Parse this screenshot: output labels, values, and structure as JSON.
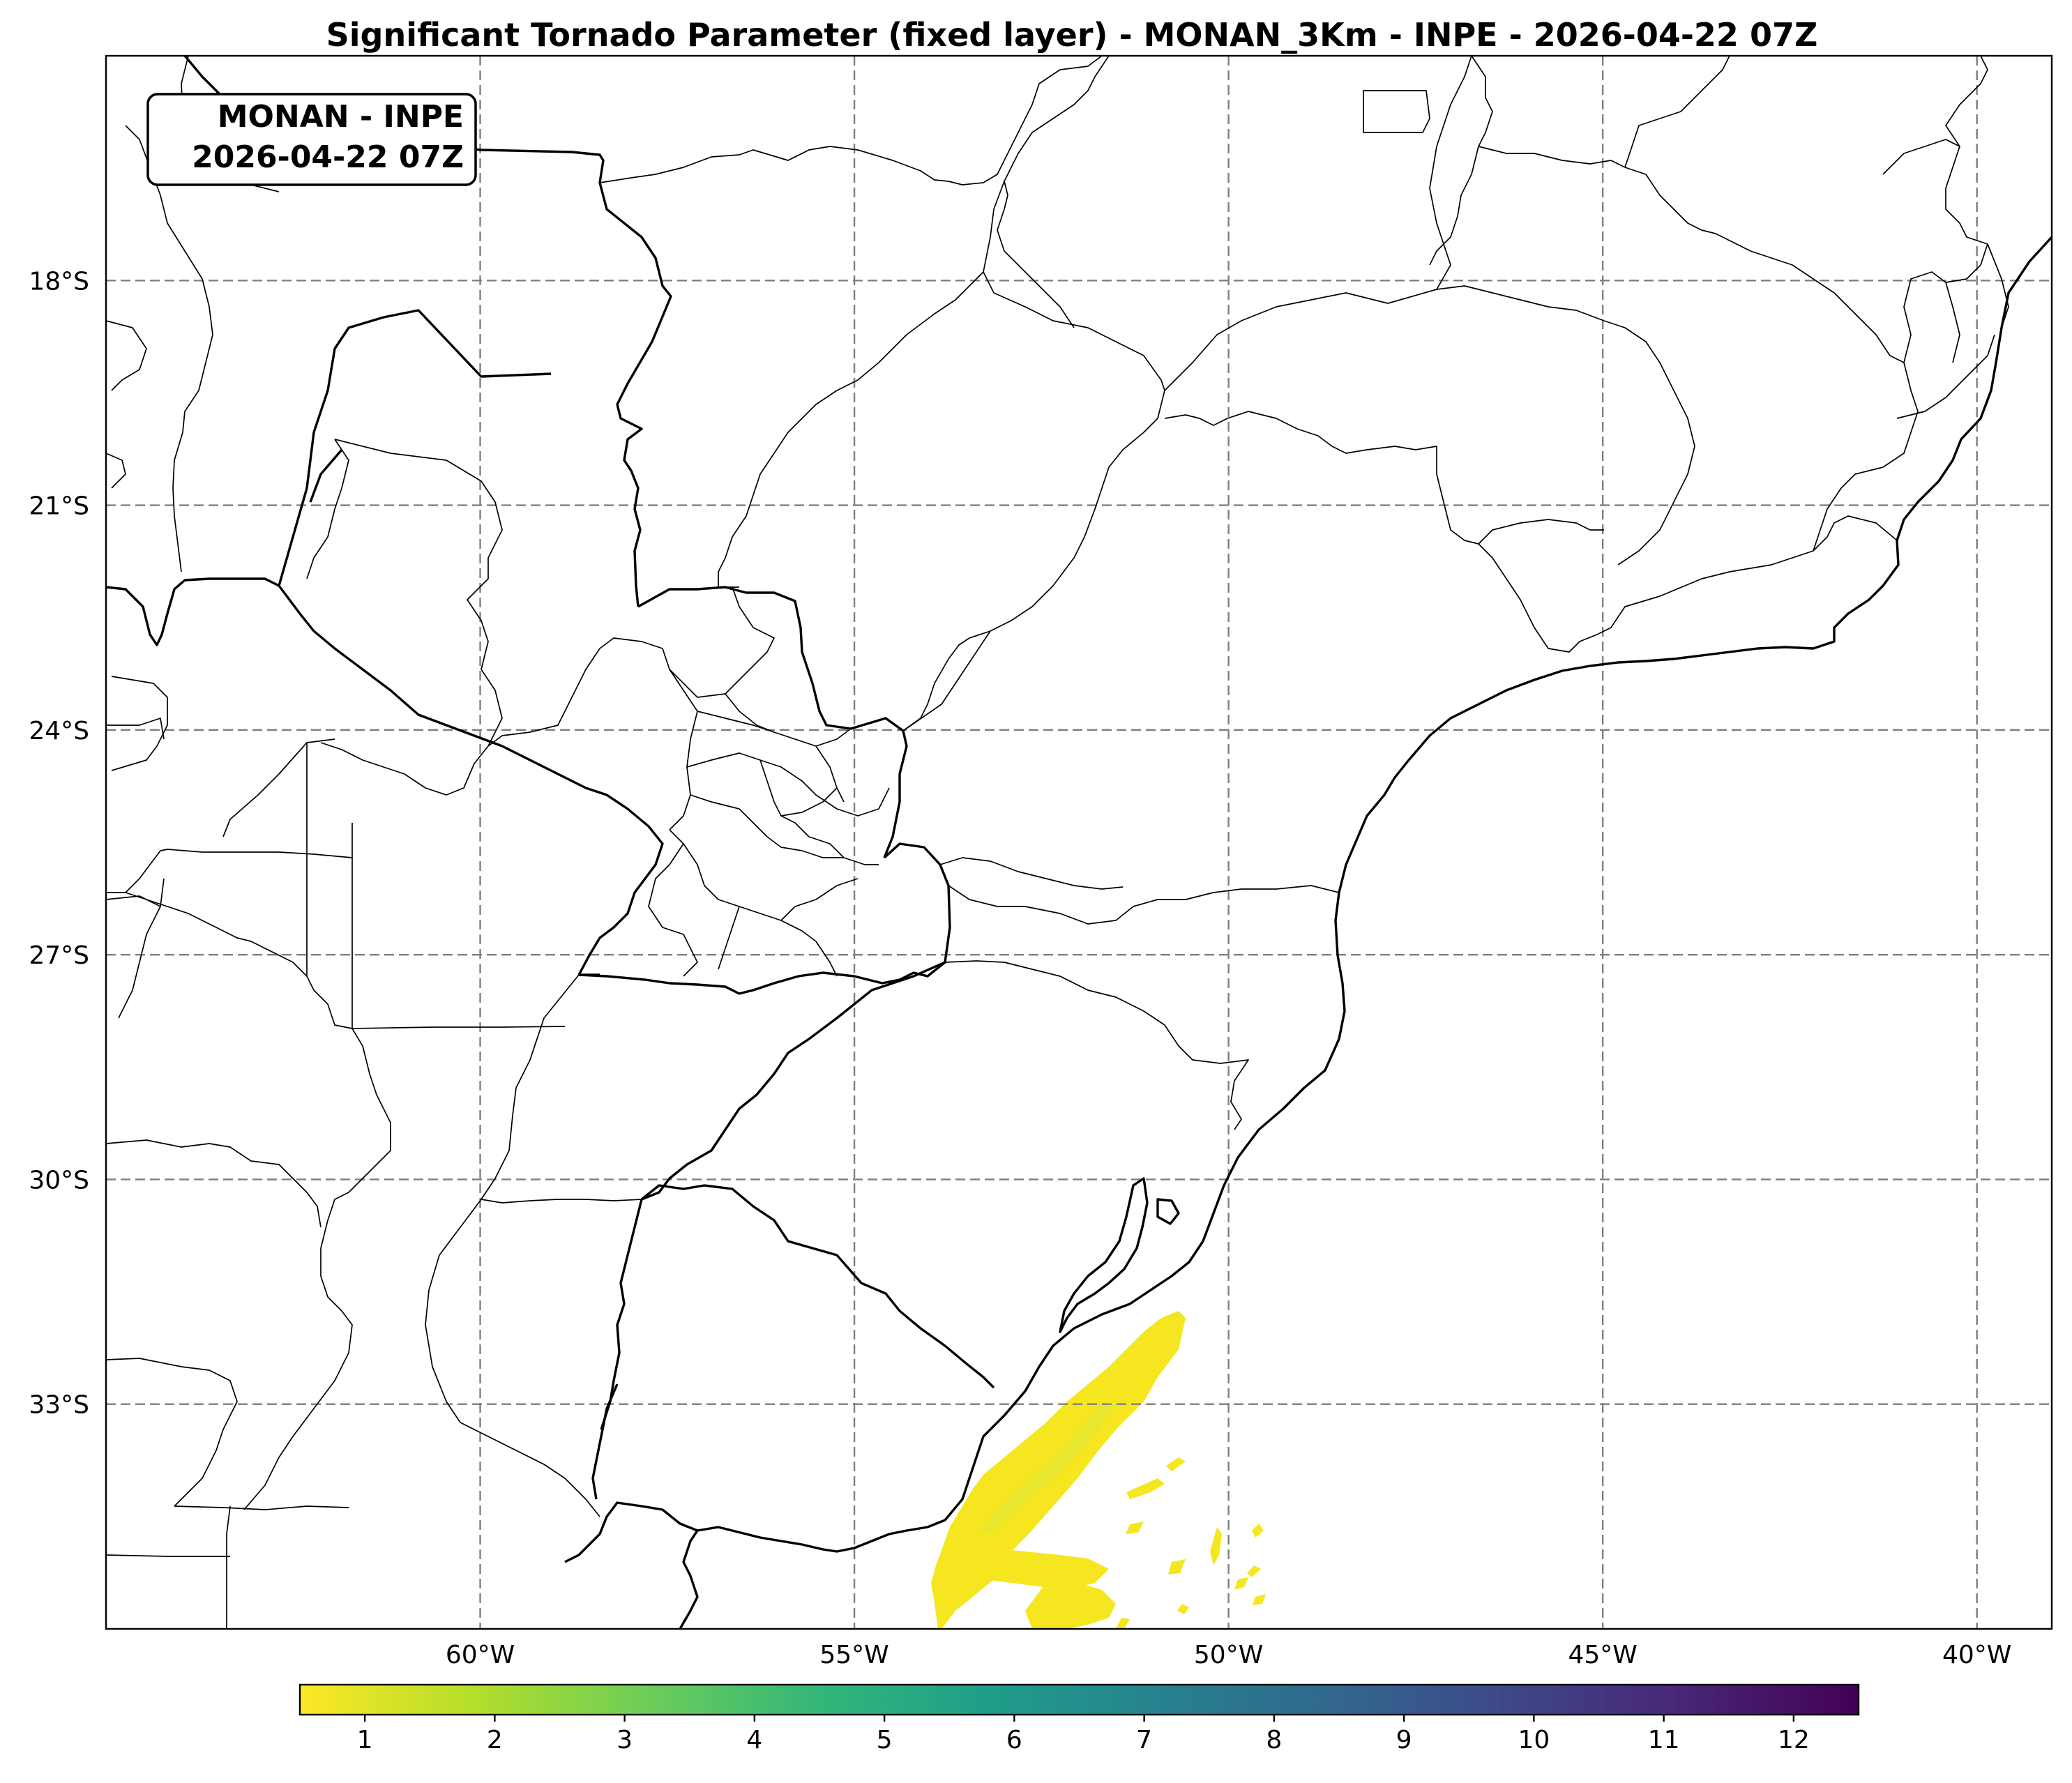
{
  "title": "Significant Tornado Parameter (fixed layer) - MONAN_3Km - INPE - 2026-04-22 07Z",
  "stamp": {
    "line1": "MONAN - INPE",
    "line2": "2026-04-22 07Z"
  },
  "map": {
    "lon_range": [
      -65,
      -39
    ],
    "lat_range": [
      -36,
      -15
    ],
    "gridlines": true,
    "lat_ticks": [
      {
        "value": -18,
        "label": "18°S"
      },
      {
        "value": -21,
        "label": "21°S"
      },
      {
        "value": -24,
        "label": "24°S"
      },
      {
        "value": -27,
        "label": "27°S"
      },
      {
        "value": -30,
        "label": "30°S"
      },
      {
        "value": -33,
        "label": "33°S"
      }
    ],
    "lon_ticks": [
      {
        "value": -60,
        "label": "60°W"
      },
      {
        "value": -55,
        "label": "55°W"
      },
      {
        "value": -50,
        "label": "50°W"
      },
      {
        "value": -45,
        "label": "45°W"
      },
      {
        "value": -40,
        "label": "40°W"
      }
    ]
  },
  "colorbar": {
    "colormap": "viridis_r",
    "range": [
      0.5,
      12.5
    ],
    "ticks": [
      "1",
      "2",
      "3",
      "4",
      "5",
      "6",
      "7",
      "8",
      "9",
      "10",
      "11",
      "12"
    ],
    "colors": [
      "#fde725",
      "#b5de2b",
      "#6ece58",
      "#35b779",
      "#1f9e89",
      "#26828e",
      "#31688e",
      "#3e4989",
      "#482878",
      "#440154"
    ]
  },
  "field": {
    "description_value_range": [
      0.5,
      2.0
    ],
    "max_color": "#e6e532"
  }
}
